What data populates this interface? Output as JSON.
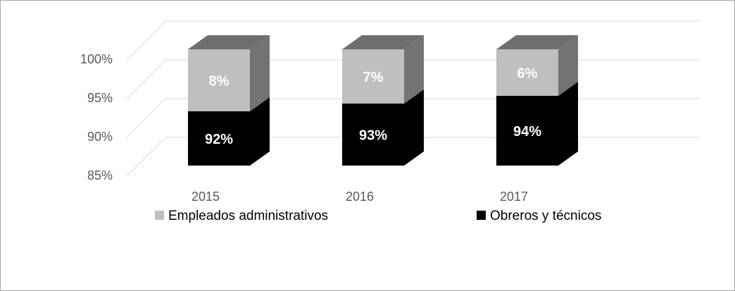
{
  "chart_data": {
    "type": "bar3d-stacked",
    "categories": [
      "2015",
      "2016",
      "2017"
    ],
    "series": [
      {
        "name": "Empleados administrativos",
        "color": "#bfbfbf",
        "values": [
          8,
          7,
          6
        ],
        "value_labels": [
          "8%",
          "7%",
          "6%"
        ]
      },
      {
        "name": "Obreros y técnicos",
        "color": "#000000",
        "values": [
          92,
          93,
          94
        ],
        "value_labels": [
          "92%",
          "93%",
          "94%"
        ]
      }
    ],
    "ylim": [
      85,
      100
    ],
    "yticks": [
      {
        "value": 85,
        "label": "85%"
      },
      {
        "value": 90,
        "label": "90%"
      },
      {
        "value": 95,
        "label": "95%"
      },
      {
        "value": 100,
        "label": "100%"
      }
    ],
    "grid": true
  }
}
